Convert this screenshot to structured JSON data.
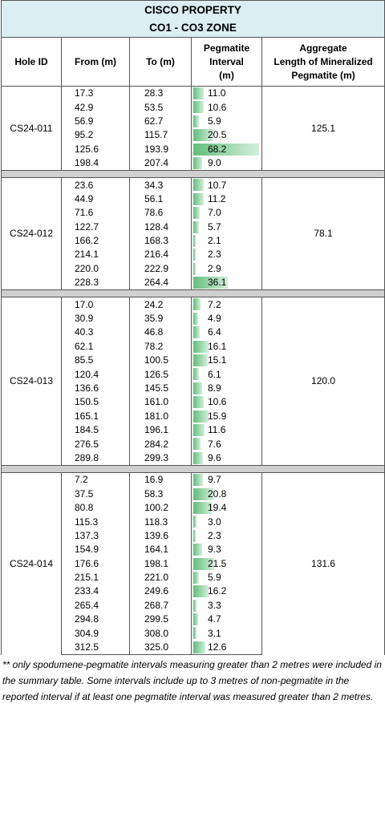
{
  "title_line1": "CISCO PROPERTY",
  "title_line2": "CO1 - CO3 ZONE",
  "headers": {
    "hole_id": "Hole ID",
    "from": "From (m)",
    "to": "To (m)",
    "pegmatite": [
      "Pegmatite",
      "Interval",
      "(m)"
    ],
    "aggregate": [
      "Aggregate",
      "Length of Mineralized",
      "Pegmatite (m)"
    ]
  },
  "bar_scale_max": 68.2,
  "colors": {
    "bar_start": "#63be7b",
    "bar_end": "#d4efdc",
    "title_bg": "#dbeef4",
    "separator": "#d0d0d0"
  },
  "holes": [
    {
      "id": "CS24-011",
      "aggregate": "125.1",
      "rows": [
        [
          "17.3",
          "28.3",
          "11.0"
        ],
        [
          "42.9",
          "53.5",
          "10.6"
        ],
        [
          "56.9",
          "62.7",
          "5.9"
        ],
        [
          "95.2",
          "115.7",
          "20.5"
        ],
        [
          "125.6",
          "193.9",
          "68.2"
        ],
        [
          "198.4",
          "207.4",
          "9.0"
        ]
      ]
    },
    {
      "id": "CS24-012",
      "aggregate": "78.1",
      "rows": [
        [
          "23.6",
          "34.3",
          "10.7"
        ],
        [
          "44.9",
          "56.1",
          "11.2"
        ],
        [
          "71.6",
          "78.6",
          "7.0"
        ],
        [
          "122.7",
          "128.4",
          "5.7"
        ],
        [
          "166.2",
          "168.3",
          "2.1"
        ],
        [
          "214.1",
          "216.4",
          "2.3"
        ],
        [
          "220.0",
          "222.9",
          "2.9"
        ],
        [
          "228.3",
          "264.4",
          "36.1"
        ]
      ]
    },
    {
      "id": "CS24-013",
      "aggregate": "120.0",
      "rows": [
        [
          "17.0",
          "24.2",
          "7.2"
        ],
        [
          "30.9",
          "35.9",
          "4.9"
        ],
        [
          "40.3",
          "46.8",
          "6.4"
        ],
        [
          "62.1",
          "78.2",
          "16.1"
        ],
        [
          "85.5",
          "100.5",
          "15.1"
        ],
        [
          "120.4",
          "126.5",
          "6.1"
        ],
        [
          "136.6",
          "145.5",
          "8.9"
        ],
        [
          "150.5",
          "161.0",
          "10.6"
        ],
        [
          "165.1",
          "181.0",
          "15.9"
        ],
        [
          "184.5",
          "196.1",
          "11.6"
        ],
        [
          "276.5",
          "284.2",
          "7.6"
        ],
        [
          "289.8",
          "299.3",
          "9.6"
        ]
      ]
    },
    {
      "id": "CS24-014",
      "aggregate": "131.6",
      "rows": [
        [
          "7.2",
          "16.9",
          "9.7"
        ],
        [
          "37.5",
          "58.3",
          "20.8"
        ],
        [
          "80.8",
          "100.2",
          "19.4"
        ],
        [
          "115.3",
          "118.3",
          "3.0"
        ],
        [
          "137.3",
          "139.6",
          "2.3"
        ],
        [
          "154.9",
          "164.1",
          "9.3"
        ],
        [
          "176.6",
          "198.1",
          "21.5"
        ],
        [
          "215.1",
          "221.0",
          "5.9"
        ],
        [
          "233.4",
          "249.6",
          "16.2"
        ],
        [
          "265.4",
          "268.7",
          "3.3"
        ],
        [
          "294.8",
          "299.5",
          "4.7"
        ],
        [
          "304.9",
          "308.0",
          "3.1"
        ],
        [
          "312.5",
          "325.0",
          "12.6"
        ]
      ]
    }
  ],
  "footnote": "** only spodumene-pegmatite intervals measuring greater than 2 metres were included in the summary table.  Some intervals include up to 3 metres of non-pegmatite in the reported interval if at least one pegmatite interval was measured greater than 2 metres."
}
